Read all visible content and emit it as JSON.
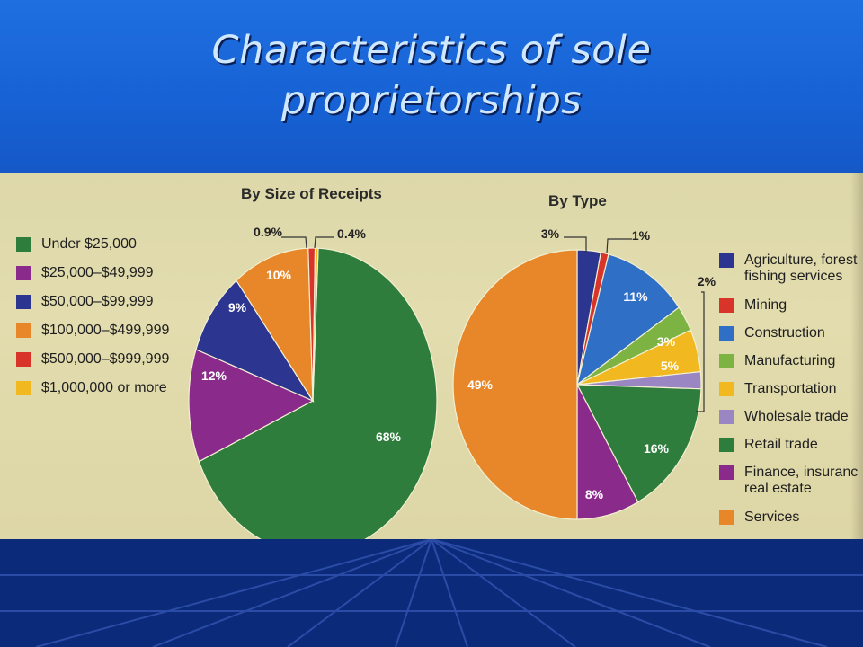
{
  "slide": {
    "title_line1": "Characteristics of sole",
    "title_line2": "proprietorships",
    "colors": {
      "title_band": "#1763d6",
      "title_text": "#cfe8ff",
      "background": "#0b2a7a",
      "photo_paper": "#e0daac"
    }
  },
  "chart_data": [
    {
      "type": "pie",
      "title": "By Size of Receipts",
      "legend_position": "left",
      "slices": [
        {
          "label": "Under $25,000",
          "value": 68,
          "value_label": "68%",
          "color": "#2e7d3c"
        },
        {
          "label": "$25,000–$49,999",
          "value": 12,
          "value_label": "12%",
          "color": "#8a2b8c"
        },
        {
          "label": "$50,000–$99,999",
          "value": 9,
          "value_label": "9%",
          "color": "#2c3590"
        },
        {
          "label": "$100,000–$499,999",
          "value": 10,
          "value_label": "10%",
          "color": "#e8862a"
        },
        {
          "label": "$500,000–$999,999",
          "value": 0.9,
          "value_label": "0.9%",
          "color": "#d8342a"
        },
        {
          "label": "$1,000,000 or more",
          "value": 0.4,
          "value_label": "0.4%",
          "color": "#f2b820"
        }
      ]
    },
    {
      "type": "pie",
      "title": "By Type",
      "legend_position": "right",
      "slices": [
        {
          "label": "Agriculture, forestry, fishing services",
          "legend_line1": "Agriculture, forest",
          "legend_line2": "fishing services",
          "value": 3,
          "value_label": "3%",
          "color": "#2c3590"
        },
        {
          "label": "Mining",
          "value": 1,
          "value_label": "1%",
          "color": "#d8342a"
        },
        {
          "label": "Construction",
          "value": 11,
          "value_label": "11%",
          "color": "#2f6fc6"
        },
        {
          "label": "Manufacturing",
          "value": 3,
          "value_label": "3%",
          "color": "#7cb342"
        },
        {
          "label": "Transportation",
          "value": 5,
          "value_label": "5%",
          "color": "#f2b820"
        },
        {
          "label": "Wholesale trade",
          "value": 2,
          "value_label": "2%",
          "color": "#9b86c4"
        },
        {
          "label": "Retail trade",
          "value": 16,
          "value_label": "16%",
          "color": "#2e7d3c"
        },
        {
          "label": "Finance, insurance, real estate",
          "legend_line1": "Finance, insuranc",
          "legend_line2": "real estate",
          "value": 8,
          "value_label": "8%",
          "color": "#8a2b8c"
        },
        {
          "label": "Services",
          "value": 49,
          "value_label": "49%",
          "color": "#e8862a"
        }
      ]
    }
  ]
}
